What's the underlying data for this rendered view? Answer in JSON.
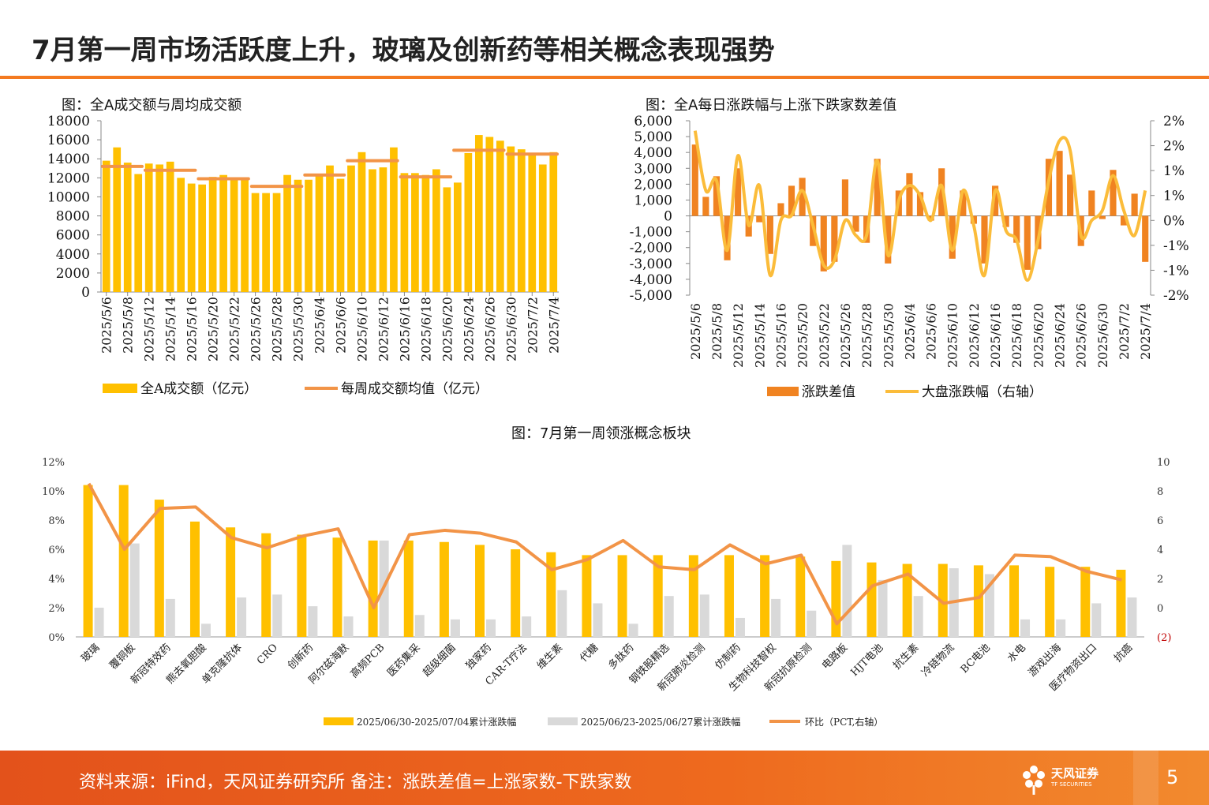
{
  "page": {
    "title": "7月第一周市场活跃度上升，玻璃及创新药等相关概念表现强势",
    "footer_text": "资料来源：iFind，天风证券研究所  备注：涨跌差值=上涨家数-下跌家数",
    "logo_cn": "天风证券",
    "logo_en": "TF SECURITIES",
    "page_number": "5"
  },
  "colors": {
    "accent": "#F47A20",
    "bar_yellow": "#FFC000",
    "bar_orange": "#F08321",
    "line_orange": "#F29447",
    "line_yellow": "#FBBC3A",
    "bar_gray": "#D9D9D9"
  },
  "chart_data": [
    {
      "type": "bar",
      "title": "图：全A成交额与周均成交额",
      "categories": [
        "2025/5/6",
        "2025/5/7",
        "2025/5/8",
        "2025/5/9",
        "2025/5/12",
        "2025/5/13",
        "2025/5/14",
        "2025/5/15",
        "2025/5/16",
        "2025/5/19",
        "2025/5/20",
        "2025/5/21",
        "2025/5/22",
        "2025/5/23",
        "2025/5/26",
        "2025/5/27",
        "2025/5/28",
        "2025/5/29",
        "2025/5/30",
        "2025/6/3",
        "2025/6/4",
        "2025/6/5",
        "2025/6/6",
        "2025/6/9",
        "2025/6/10",
        "2025/6/11",
        "2025/6/12",
        "2025/6/13",
        "2025/6/16",
        "2025/6/17",
        "2025/6/18",
        "2025/6/19",
        "2025/6/20",
        "2025/6/23",
        "2025/6/24",
        "2025/6/25",
        "2025/6/26",
        "2025/6/27",
        "2025/6/30",
        "2025/7/1",
        "2025/7/2",
        "2025/7/3",
        "2025/7/4"
      ],
      "x_tick_labels": [
        "2025/5/6",
        "2025/5/8",
        "2025/5/12",
        "2025/5/14",
        "2025/5/16",
        "2025/5/20",
        "2025/5/22",
        "2025/5/26",
        "2025/5/28",
        "2025/5/30",
        "2025/6/4",
        "2025/6/6",
        "2025/6/10",
        "2025/6/12",
        "2025/6/16",
        "2025/6/18",
        "2025/6/20",
        "2025/6/24",
        "2025/6/26",
        "2025/6/30",
        "2025/7/2",
        "2025/7/4"
      ],
      "series": [
        {
          "name": "全A成交额（亿元）",
          "type": "bar",
          "values": [
            13800,
            15200,
            13600,
            12400,
            13500,
            13400,
            13700,
            12000,
            11400,
            11300,
            12100,
            12300,
            11900,
            11900,
            10400,
            10400,
            10400,
            12300,
            11800,
            11800,
            12200,
            13300,
            11900,
            13300,
            14700,
            12900,
            13100,
            15200,
            12500,
            12500,
            12300,
            12900,
            11000,
            11500,
            14600,
            16500,
            16300,
            15900,
            15300,
            15000,
            14400,
            13400,
            14700
          ]
        },
        {
          "name": "每周成交额均值（亿元）",
          "type": "weekly-average",
          "weeks": [
            {
              "start": 0,
              "end": 3,
              "value": 13200
            },
            {
              "start": 4,
              "end": 8,
              "value": 12800
            },
            {
              "start": 9,
              "end": 13,
              "value": 11900
            },
            {
              "start": 14,
              "end": 18,
              "value": 11100
            },
            {
              "start": 19,
              "end": 22,
              "value": 12300
            },
            {
              "start": 23,
              "end": 27,
              "value": 13800
            },
            {
              "start": 28,
              "end": 32,
              "value": 12100
            },
            {
              "start": 33,
              "end": 37,
              "value": 14900
            },
            {
              "start": 38,
              "end": 42,
              "value": 14500
            }
          ]
        }
      ],
      "ylim": [
        0,
        18000
      ],
      "yticks": [
        "0",
        "2000",
        "4000",
        "6000",
        "8000",
        "10000",
        "12000",
        "14000",
        "16000",
        "18000"
      ]
    },
    {
      "type": "bar+line",
      "title": "图：全A每日涨跌幅与上涨下跌家数差值",
      "categories": [
        "2025/5/6",
        "2025/5/7",
        "2025/5/8",
        "2025/5/9",
        "2025/5/12",
        "2025/5/13",
        "2025/5/14",
        "2025/5/15",
        "2025/5/16",
        "2025/5/19",
        "2025/5/20",
        "2025/5/21",
        "2025/5/22",
        "2025/5/23",
        "2025/5/26",
        "2025/5/27",
        "2025/5/28",
        "2025/5/29",
        "2025/5/30",
        "2025/6/3",
        "2025/6/4",
        "2025/6/5",
        "2025/6/6",
        "2025/6/9",
        "2025/6/10",
        "2025/6/11",
        "2025/6/12",
        "2025/6/13",
        "2025/6/16",
        "2025/6/17",
        "2025/6/18",
        "2025/6/19",
        "2025/6/20",
        "2025/6/23",
        "2025/6/24",
        "2025/6/25",
        "2025/6/26",
        "2025/6/27",
        "2025/6/30",
        "2025/7/1",
        "2025/7/2",
        "2025/7/3",
        "2025/7/4"
      ],
      "x_tick_labels": [
        "2025/5/6",
        "2025/5/8",
        "2025/5/12",
        "2025/5/14",
        "2025/5/16",
        "2025/5/20",
        "2025/5/22",
        "2025/5/26",
        "2025/5/28",
        "2025/5/30",
        "2025/6/4",
        "2025/6/6",
        "2025/6/10",
        "2025/6/12",
        "2025/6/16",
        "2025/6/18",
        "2025/6/20",
        "2025/6/24",
        "2025/6/26",
        "2025/6/30",
        "2025/7/2",
        "2025/7/4"
      ],
      "series": [
        {
          "name": "涨跌差值",
          "axis": "left",
          "values": [
            4500,
            1200,
            2500,
            -2800,
            3000,
            -1300,
            -400,
            -2400,
            800,
            1900,
            2400,
            -1900,
            -3500,
            -2900,
            2300,
            -1000,
            -1700,
            3600,
            -3000,
            1600,
            2700,
            1500,
            -300,
            3000,
            -2700,
            1600,
            -500,
            -3000,
            1900,
            -700,
            -1700,
            -3400,
            -2100,
            3600,
            4100,
            2600,
            -1900,
            1600,
            -200,
            2900,
            -600,
            1400,
            -2900
          ]
        },
        {
          "name": "大盘涨跌幅（右轴）",
          "axis": "right",
          "values": [
            1.8,
            0.6,
            0.8,
            -0.6,
            1.3,
            -0.1,
            0.7,
            -1.1,
            0.0,
            0.1,
            0.6,
            -0.1,
            -0.9,
            -0.8,
            0.0,
            -0.3,
            -0.3,
            1.2,
            -0.7,
            0.4,
            0.7,
            0.5,
            0.0,
            0.7,
            -0.6,
            0.6,
            -0.1,
            -1.1,
            0.6,
            -0.2,
            -0.4,
            -1.2,
            -0.4,
            0.8,
            1.6,
            1.4,
            -0.3,
            0.0,
            0.2,
            0.9,
            0.2,
            -0.3,
            0.6
          ]
        }
      ],
      "ylim": [
        -5000,
        6000
      ],
      "y2lim": [
        -1.5,
        2.0
      ],
      "yticks": [
        "-5,000",
        "-4,000",
        "-3,000",
        "-2,000",
        "-1,000",
        "0",
        "1,000",
        "2,000",
        "3,000",
        "4,000",
        "5,000",
        "6,000"
      ],
      "y2ticks": [
        "-2%",
        "-1%",
        "-1%",
        "0%",
        "1%",
        "1%",
        "2%",
        "2%"
      ]
    },
    {
      "type": "bar+line",
      "title": "图：7月第一周领涨概念板块",
      "categories": [
        "玻璃",
        "覆铜板",
        "新冠特效药",
        "熊去氧胆酸",
        "单克隆抗体",
        "CRO",
        "创新药",
        "阿尔兹海默",
        "高频PCB",
        "医药集采",
        "超级细菌",
        "独家药",
        "CAR-T疗法",
        "维生素",
        "代糖",
        "多肽药",
        "钢铁股精选",
        "新冠肺炎检测",
        "仿制药",
        "生物科技智权",
        "新冠抗原检测",
        "电路板",
        "HJT电池",
        "抗生素",
        "冷链物流",
        "BC电池",
        "水电",
        "游戏出海",
        "医疗物资出口",
        "抗癌"
      ],
      "series": [
        {
          "name": "2025/06/30-2025/07/04累计涨跌幅",
          "axis": "left",
          "values": [
            10.4,
            10.4,
            9.4,
            7.9,
            7.5,
            7.1,
            7.0,
            6.8,
            6.6,
            6.6,
            6.5,
            6.3,
            6.0,
            5.8,
            5.6,
            5.6,
            5.6,
            5.6,
            5.6,
            5.6,
            5.5,
            5.2,
            5.1,
            5.0,
            5.0,
            4.9,
            4.9,
            4.8,
            4.8,
            4.6
          ]
        },
        {
          "name": "2025/06/23-2025/06/27累计涨跌幅",
          "axis": "left",
          "values": [
            2.0,
            6.4,
            2.6,
            0.9,
            2.7,
            2.9,
            2.1,
            1.4,
            6.6,
            1.5,
            1.2,
            1.2,
            1.4,
            3.2,
            2.3,
            0.9,
            2.8,
            2.9,
            1.3,
            2.6,
            1.8,
            6.3,
            3.9,
            2.8,
            4.7,
            4.3,
            1.2,
            1.2,
            2.3,
            2.7
          ]
        },
        {
          "name": "环比（PCT,右轴）",
          "axis": "right",
          "values": [
            8.5,
            4.0,
            6.8,
            6.9,
            4.8,
            4.1,
            4.9,
            5.4,
            0.0,
            5.0,
            5.3,
            5.1,
            4.5,
            2.6,
            3.3,
            4.6,
            2.8,
            2.6,
            4.3,
            3.0,
            3.6,
            -1.1,
            1.5,
            2.3,
            0.3,
            0.7,
            3.6,
            3.5,
            2.5,
            1.9
          ]
        }
      ],
      "ylim": [
        0,
        12
      ],
      "y2lim": [
        -2,
        10
      ],
      "yticks": [
        "0%",
        "2%",
        "4%",
        "6%",
        "8%",
        "10%",
        "12%"
      ],
      "y2ticks": [
        "(2)",
        "0",
        "2",
        "4",
        "6",
        "8",
        "10"
      ]
    }
  ]
}
